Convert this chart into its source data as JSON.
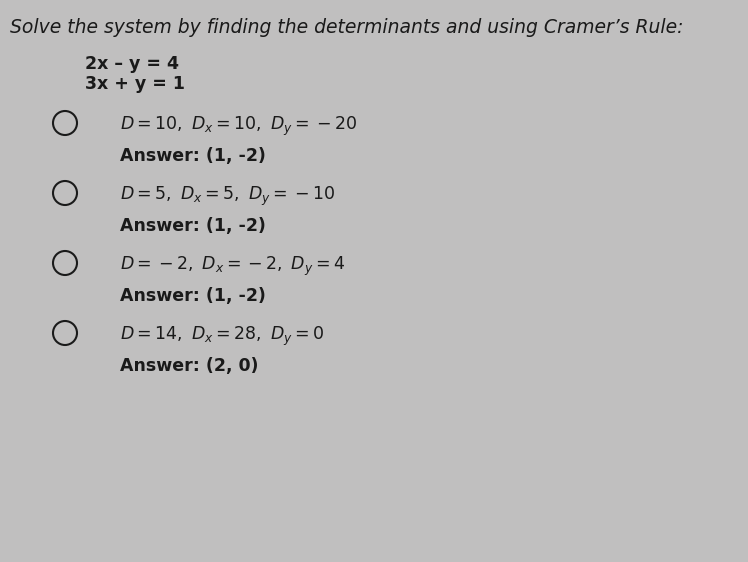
{
  "background_color": "#c0bfbf",
  "title": "Solve the system by finding the determinants and using Cramer’s Rule:",
  "system_eq1": "2x – y = 4",
  "system_eq2": "3x + y = 1",
  "options": [
    {
      "d_line": "$D = 10,\\ D_x = 10,\\ D_y = -20$",
      "answer": "Answer: (1, -2)"
    },
    {
      "d_line": "$D = 5,\\ D_x = 5,\\ D_y = -10$",
      "answer": "Answer: (1, -2)"
    },
    {
      "d_line": "$D = -2,\\ D_x = -2,\\ D_y = 4$",
      "answer": "Answer: (1, -2)"
    },
    {
      "d_line": "$D = 14,\\ D_x = 28,\\ D_y = 0$",
      "answer": "Answer: (2, 0)"
    }
  ],
  "text_color": "#1a1a1a",
  "font_size_title": 13.5,
  "font_size_system": 12.5,
  "font_size_option": 12.5,
  "font_size_answer": 12.5
}
